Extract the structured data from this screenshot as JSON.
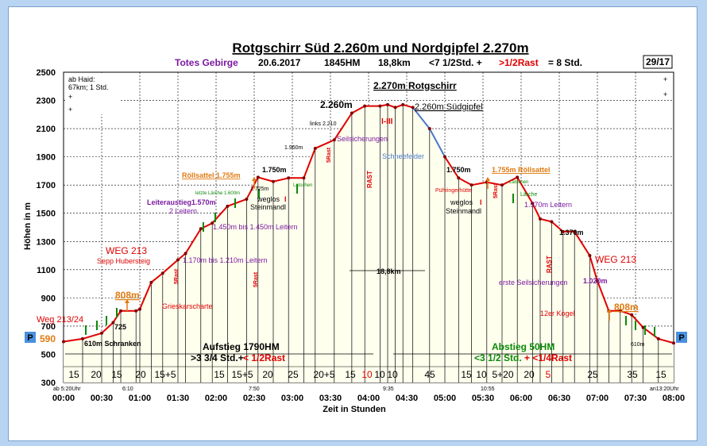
{
  "title": "Rotgschirr Süd 2.260m und Nordgipfel 2.270m",
  "subtitle": {
    "region": "Totes Gebirge",
    "date": "20.6.2017",
    "hm": "1845HM",
    "km": "18,8km",
    "time_a": "<7 1/2Std. +",
    "rast": ">1/2Rast",
    "time_b": "= 8 Std."
  },
  "tour_no": "29/17",
  "info_box": {
    "line1": "ab Haid:",
    "line2": "67km; 1 Std.",
    "plus": "+"
  },
  "ylabel": "Höhen in m",
  "xlabel": "Zeit in Stunden",
  "colors": {
    "profile": "#e00000",
    "snow": "#4a78c8",
    "orange": "#e07a10",
    "purple": "#7a1aa0",
    "green": "#0a8a0a",
    "red": "#e00000",
    "fill": "#ffffee"
  },
  "chart_data": {
    "type": "line",
    "xlim": [
      0,
      8
    ],
    "ylim": [
      300,
      2500
    ],
    "x_ticks": [
      "00:00",
      "00:30",
      "01:00",
      "01:30",
      "02:00",
      "02:30",
      "03:00",
      "03:30",
      "04:00",
      "04:30",
      "05:00",
      "05:30",
      "06:00",
      "06:30",
      "07:00",
      "07:30",
      "08:00"
    ],
    "y_ticks": [
      300,
      500,
      700,
      900,
      1100,
      1300,
      1500,
      1700,
      1900,
      2100,
      2300,
      2500
    ],
    "grid": true,
    "series": [
      {
        "x": [
          0,
          0.25,
          0.5,
          0.65,
          0.75,
          0.95,
          1.0,
          1.15,
          1.3,
          1.5,
          1.6,
          1.8,
          1.95,
          2.15,
          2.4,
          2.55,
          2.75,
          2.95,
          3.15,
          3.3,
          3.55,
          3.78,
          3.95,
          4.15,
          4.25,
          4.35,
          4.45,
          4.58,
          4.8,
          5.0,
          5.18,
          5.35,
          5.55,
          5.75,
          5.95,
          6.15,
          6.25,
          6.4,
          6.55,
          6.7,
          6.9,
          7.0,
          7.15,
          7.3,
          7.45,
          7.6,
          7.8,
          8.0
        ],
        "y": [
          590,
          610,
          650,
          725,
          808,
          808,
          820,
          1010,
          1075,
          1170,
          1215,
          1390,
          1430,
          1550,
          1600,
          1755,
          1725,
          1750,
          1750,
          1960,
          2020,
          2210,
          2260,
          2260,
          2270,
          2250,
          2270,
          2250,
          2100,
          1900,
          1750,
          1700,
          1720,
          1700,
          1755,
          1570,
          1460,
          1440,
          1370,
          1370,
          1200,
          1020,
          808,
          808,
          780,
          690,
          610,
          580
        ]
      }
    ],
    "duration_labels": [
      "15",
      "20",
      "15",
      "20",
      "15+5",
      "15",
      "15+5",
      "20",
      "25",
      "20+5",
      "15",
      "10",
      "10",
      "10",
      "45",
      "15",
      "10",
      "5+20",
      "20",
      "5",
      "25",
      "35",
      "15"
    ],
    "time_marks": {
      "start": "ab 5:20Uhr",
      "t1": "6:10",
      "t2": "7:50",
      "t3": "9:35",
      "t4": "10:55",
      "end": "an13:20Uhr"
    },
    "annotations": {
      "summit_main": "2.270m Rotgschirr",
      "summit_south_alt": "2.260m",
      "summit_south": "2.260m Südgipfel",
      "weg_213_24": "Weg 213/24",
      "p_left": "P",
      "p_left_alt": "590",
      "p_right": "P",
      "schranken": "610m Schranken",
      "alt_725": "725",
      "alt_808_left": "808m",
      "alt_808_right": "808m",
      "weg_213_left": "WEG 213",
      "sepp_hubersteig": "Sepp Hubersteig",
      "grieskarscharte": "Grieskarscharte",
      "leiteraustieg": "Leiteraustieg1.570m",
      "leitern_2": "2 Leitern",
      "laerche_1600": "letzte Lärche 1.600m",
      "roellsattel_left": "Röllsattel 1.755m",
      "alt_1750_left": "1.750m",
      "alt_1725": "1.725m",
      "weglos_left": "weglos",
      "steinmandl_left": "Steinmandl",
      "latschen_left": "Latschen",
      "leitern_1450": "1.450m bis 1.450m Leitern",
      "leitern_1170": "1.170m bis 1.210m Leitern",
      "alt_1960": "1.960m",
      "links_2210": "links 2.210",
      "seilsicherungen": "Seilsicherungen",
      "schneefelder": "Schneefelder",
      "alt_1750_right": "1.750m",
      "roellsattel_right": "1.755m Röllsattel",
      "puehringerhuette": "Pühringerhütte",
      "weglos_right": "weglos",
      "steinmandl_right": "Steinmandl",
      "latschen_right": "Latschen",
      "laerche": "Lärche",
      "leitern_1570": "1.570m Leitern",
      "alt_1370": "1.370m",
      "weg_213_right": "WEG 213",
      "erste_seil": "erste Seilsicherungen",
      "alt_1020": "1.020m",
      "zwoelfer_kogel": "12er Kogel",
      "alt_610_right": "610m",
      "distance": "18,8km",
      "aufstieg": "Aufstieg 1790HM",
      "aufstieg_time_a": ">3 3/4 Std.+",
      "aufstieg_time_b": "< 1/2Rast",
      "abstieg": "Abstieg 50HM",
      "abstieg_time_a": "<3 1/2 Std.",
      "abstieg_time_b": "+ <1/4Rast",
      "rast_short": "5Rast",
      "rast": "RAST",
      "rast_long": "5Rast",
      "roman_1": "I",
      "roman_3": "I-III"
    }
  }
}
